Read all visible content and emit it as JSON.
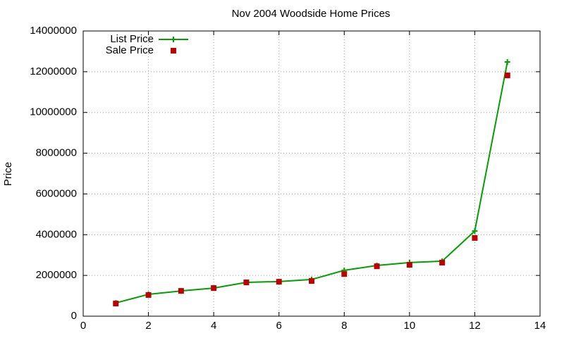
{
  "chart_data": {
    "type": "line",
    "title": "Nov 2004 Woodside Home Prices",
    "y_label": "Price",
    "x": [
      1,
      2,
      3,
      4,
      5,
      6,
      7,
      8,
      9,
      10,
      11,
      12,
      13
    ],
    "series": [
      {
        "name": "List Price",
        "color": "#00a000",
        "style": "linespoints",
        "marker": "plus",
        "values": [
          650000,
          1070000,
          1240000,
          1380000,
          1660000,
          1700000,
          1800000,
          2250000,
          2490000,
          2630000,
          2700000,
          4180000,
          12480000
        ]
      },
      {
        "name": "Sale Price",
        "color": "#c00000",
        "style": "points",
        "marker": "square",
        "values": [
          620000,
          1040000,
          1240000,
          1380000,
          1660000,
          1690000,
          1730000,
          2070000,
          2450000,
          2520000,
          2630000,
          3840000,
          11820000
        ]
      }
    ],
    "xlim": [
      0,
      14
    ],
    "xticks": [
      0,
      2,
      4,
      6,
      8,
      10,
      12,
      14
    ],
    "ylim": [
      0,
      14000000
    ],
    "yticks": [
      0,
      2000000,
      4000000,
      6000000,
      8000000,
      10000000,
      12000000,
      14000000
    ],
    "grid": true,
    "legend": "top-left"
  }
}
